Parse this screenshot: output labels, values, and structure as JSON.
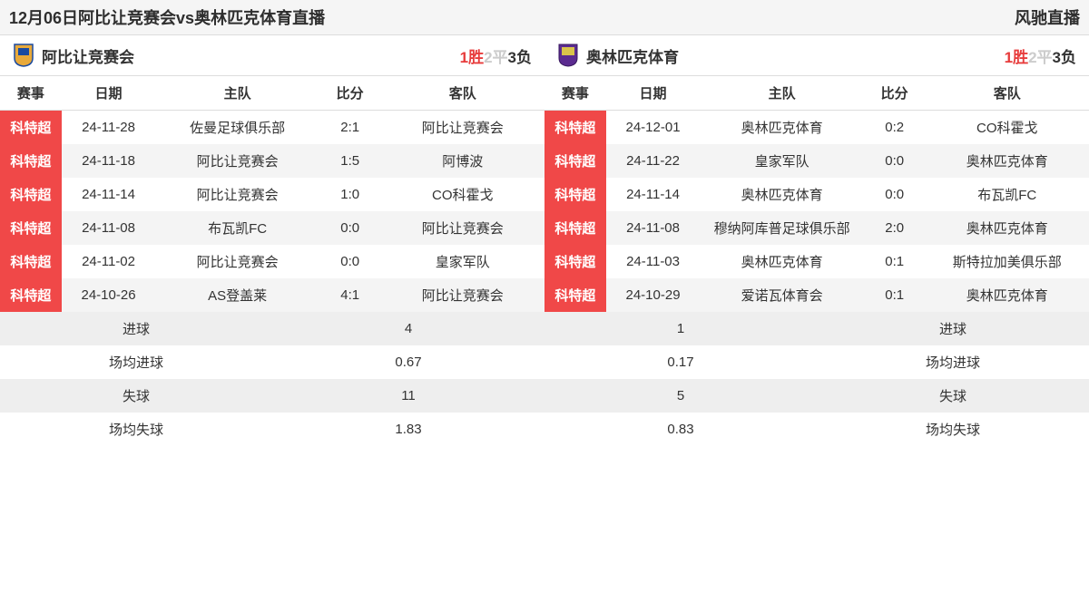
{
  "header": {
    "title": "12月06日阿比让竞赛会vs奥林匹克体育直播",
    "brand": "风驰直播"
  },
  "teams": {
    "left": {
      "name": "阿比让竞赛会",
      "logo_bg": "#e8a93a",
      "logo_accent": "#1a4aa0",
      "record": {
        "win_n": "1",
        "win_t": "胜",
        "draw_n": "2",
        "draw_t": "平",
        "lose_n": "3",
        "lose_t": "负"
      }
    },
    "right": {
      "name": "奥林匹克体育",
      "logo_bg": "#5b2b90",
      "logo_accent": "#d9c34a",
      "record": {
        "win_n": "1",
        "win_t": "胜",
        "draw_n": "2",
        "draw_t": "平",
        "lose_n": "3",
        "lose_t": "负"
      }
    }
  },
  "columns": {
    "league": "赛事",
    "date": "日期",
    "home": "主队",
    "score": "比分",
    "away": "客队"
  },
  "left_matches": [
    {
      "league": "科特超",
      "date": "24-11-28",
      "home": "佐曼足球俱乐部",
      "score": "2:1",
      "away": "阿比让竞赛会"
    },
    {
      "league": "科特超",
      "date": "24-11-18",
      "home": "阿比让竞赛会",
      "score": "1:5",
      "away": "阿博波"
    },
    {
      "league": "科特超",
      "date": "24-11-14",
      "home": "阿比让竞赛会",
      "score": "1:0",
      "away": "CO科霍戈"
    },
    {
      "league": "科特超",
      "date": "24-11-08",
      "home": "布瓦凯FC",
      "score": "0:0",
      "away": "阿比让竞赛会"
    },
    {
      "league": "科特超",
      "date": "24-11-02",
      "home": "阿比让竞赛会",
      "score": "0:0",
      "away": "皇家军队"
    },
    {
      "league": "科特超",
      "date": "24-10-26",
      "home": "AS登盖莱",
      "score": "4:1",
      "away": "阿比让竞赛会"
    }
  ],
  "right_matches": [
    {
      "league": "科特超",
      "date": "24-12-01",
      "home": "奥林匹克体育",
      "score": "0:2",
      "away": "CO科霍戈"
    },
    {
      "league": "科特超",
      "date": "24-11-22",
      "home": "皇家军队",
      "score": "0:0",
      "away": "奥林匹克体育"
    },
    {
      "league": "科特超",
      "date": "24-11-14",
      "home": "奥林匹克体育",
      "score": "0:0",
      "away": "布瓦凯FC"
    },
    {
      "league": "科特超",
      "date": "24-11-08",
      "home": "穆纳阿库普足球俱乐部",
      "score": "2:0",
      "away": "奥林匹克体育"
    },
    {
      "league": "科特超",
      "date": "24-11-03",
      "home": "奥林匹克体育",
      "score": "0:1",
      "away": "斯特拉加美俱乐部"
    },
    {
      "league": "科特超",
      "date": "24-10-29",
      "home": "爱诺瓦体育会",
      "score": "0:1",
      "away": "奥林匹克体育"
    }
  ],
  "stats": [
    {
      "label_l": "进球",
      "val_l": "4",
      "val_r": "1",
      "label_r": "进球"
    },
    {
      "label_l": "场均进球",
      "val_l": "0.67",
      "val_r": "0.17",
      "label_r": "场均进球"
    },
    {
      "label_l": "失球",
      "val_l": "11",
      "val_r": "5",
      "label_r": "失球"
    },
    {
      "label_l": "场均失球",
      "val_l": "1.83",
      "val_r": "0.83",
      "label_r": "场均失球"
    }
  ]
}
